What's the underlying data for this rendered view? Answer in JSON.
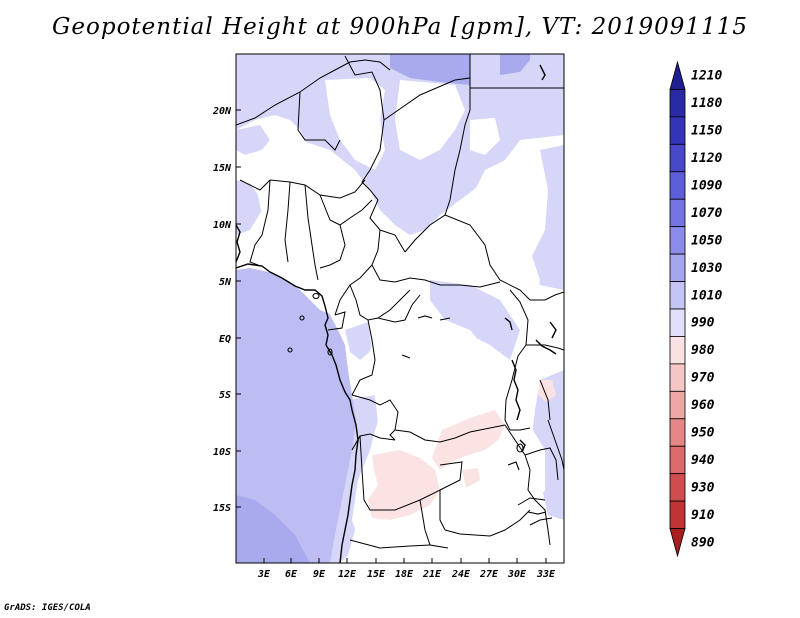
{
  "title": "Geopotential Height at 900hPa [gpm], VT: 2019091115",
  "footer": "GrADS: IGES/COLA",
  "map": {
    "lat_labels": [
      "20N",
      "15N",
      "10N",
      "5N",
      "EQ",
      "5S",
      "10S",
      "15S"
    ],
    "lon_labels": [
      "3E",
      "6E",
      "9E",
      "12E",
      "15E",
      "18E",
      "21E",
      "24E",
      "27E",
      "30E",
      "33E"
    ]
  },
  "colorbar": {
    "levels": [
      "1210",
      "1180",
      "1150",
      "1120",
      "1090",
      "1070",
      "1050",
      "1030",
      "1010",
      "990",
      "980",
      "970",
      "960",
      "950",
      "940",
      "930",
      "910",
      "890"
    ],
    "colors": [
      "#201f8f",
      "#2a2aa5",
      "#3434b8",
      "#4848c9",
      "#5e5ed8",
      "#7474e2",
      "#8b8bea",
      "#a5a5f0",
      "#c4c4f6",
      "#e0e0fa",
      "#fbe2e2",
      "#f6c6c6",
      "#eea6a6",
      "#e58787",
      "#dc6a6a",
      "#d04d4d",
      "#c03434",
      "#a91e1e"
    ]
  },
  "colors": {
    "ocean": "#b9b9f2",
    "deep": "#a8a8ee",
    "land_light": "#d6d6f8",
    "land_white": "#ffffff",
    "pink": "#fbe2e2"
  }
}
